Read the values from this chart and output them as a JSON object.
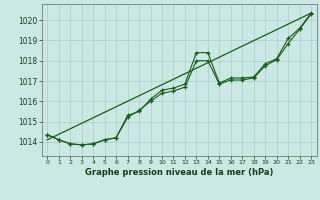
{
  "title": "Graphe pression niveau de la mer (hPa)",
  "bg_color": "#cce8e4",
  "grid_color": "#aaccca",
  "line_color": "#1a5c1a",
  "xlim": [
    -0.5,
    23.5
  ],
  "ylim": [
    1013.3,
    1020.8
  ],
  "yticks": [
    1014,
    1015,
    1016,
    1017,
    1018,
    1019,
    1020
  ],
  "xticks": [
    0,
    1,
    2,
    3,
    4,
    5,
    6,
    7,
    8,
    9,
    10,
    11,
    12,
    13,
    14,
    15,
    16,
    17,
    18,
    19,
    20,
    21,
    22,
    23
  ],
  "series1_y": [
    1014.35,
    1014.1,
    1013.9,
    1013.85,
    1013.9,
    1014.1,
    1014.2,
    1015.3,
    1015.5,
    1016.1,
    1016.55,
    1016.65,
    1016.85,
    1018.4,
    1018.4,
    1016.9,
    1017.15,
    1017.15,
    1017.2,
    1017.85,
    1018.1,
    1019.1,
    1019.6,
    1020.35
  ],
  "series2_y": [
    1014.35,
    1014.1,
    1013.9,
    1013.85,
    1013.9,
    1014.1,
    1014.2,
    1015.2,
    1015.55,
    1016.0,
    1016.4,
    1016.5,
    1016.7,
    1018.0,
    1018.0,
    1016.85,
    1017.05,
    1017.05,
    1017.15,
    1017.75,
    1018.05,
    1018.85,
    1019.55,
    1020.3
  ],
  "trend_x": [
    0,
    23
  ],
  "trend_y": [
    1014.1,
    1020.35
  ]
}
